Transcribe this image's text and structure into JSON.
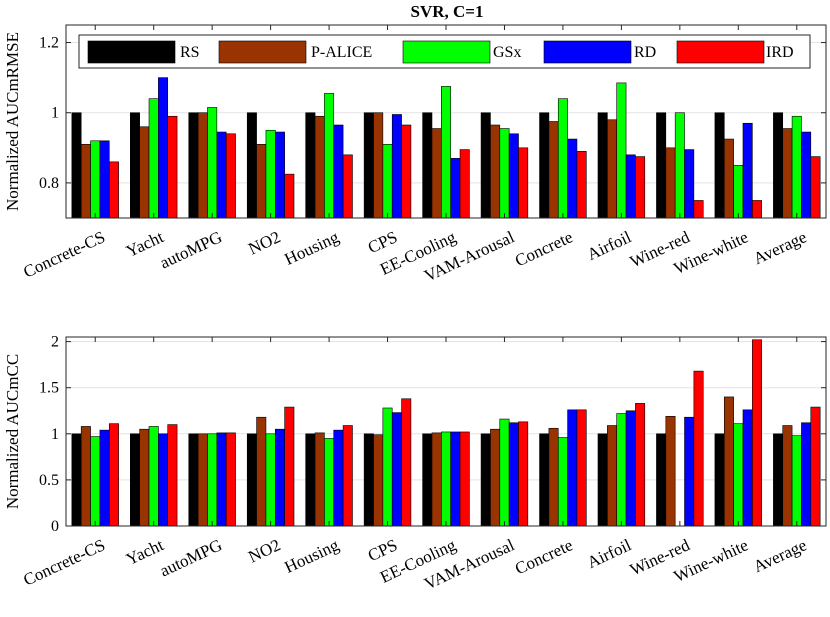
{
  "chart_data": [
    {
      "type": "bar",
      "title": "SVR,  C=1",
      "xlabel": "",
      "ylabel": "Normalized AUCmRMSE",
      "ylim": [
        0.7,
        1.25
      ],
      "yticks": [
        0.8,
        1,
        1.2
      ],
      "ytick_labels": [
        "0.8",
        "1",
        "1.2"
      ],
      "grid": true,
      "legend_position": "top",
      "categories": [
        "Concrete-CS",
        "Yacht",
        "autoMPG",
        "NO2",
        "Housing",
        "CPS",
        "EE-Cooling",
        "VAM-Arousal",
        "Concrete",
        "Airfoil",
        "Wine-red",
        "Wine-white",
        "Average"
      ],
      "series": [
        {
          "name": "RS",
          "color": "#000000",
          "values": [
            1.0,
            1.0,
            1.0,
            1.0,
            1.0,
            1.0,
            1.0,
            1.0,
            1.0,
            1.0,
            1.0,
            1.0,
            1.0
          ]
        },
        {
          "name": "P-ALICE",
          "color": "#993300",
          "values": [
            0.91,
            0.96,
            1.0,
            0.91,
            0.99,
            1.0,
            0.955,
            0.965,
            0.975,
            0.98,
            0.9,
            0.925,
            0.955
          ]
        },
        {
          "name": "GSx",
          "color": "#00ff00",
          "values": [
            0.92,
            1.04,
            1.015,
            0.95,
            1.055,
            0.91,
            1.075,
            0.955,
            1.04,
            1.085,
            1.0,
            0.85,
            0.99
          ]
        },
        {
          "name": "RD",
          "color": "#0000ff",
          "values": [
            0.92,
            1.1,
            0.945,
            0.945,
            0.965,
            0.995,
            0.87,
            0.94,
            0.925,
            0.88,
            0.895,
            0.97,
            0.945
          ]
        },
        {
          "name": "IRD",
          "color": "#ff0000",
          "values": [
            0.86,
            0.99,
            0.94,
            0.825,
            0.88,
            0.965,
            0.895,
            0.9,
            0.89,
            0.875,
            0.75,
            0.75,
            0.875
          ]
        }
      ]
    },
    {
      "type": "bar",
      "title": "",
      "xlabel": "",
      "ylabel": "Normalized AUCmCC",
      "ylim": [
        0,
        2.05
      ],
      "yticks": [
        0,
        0.5,
        1,
        1.5,
        2
      ],
      "ytick_labels": [
        "0",
        "0.5",
        "1",
        "1.5",
        "2"
      ],
      "grid": true,
      "categories": [
        "Concrete-CS",
        "Yacht",
        "autoMPG",
        "NO2",
        "Housing",
        "CPS",
        "EE-Cooling",
        "VAM-Arousal",
        "Concrete",
        "Airfoil",
        "Wine-red",
        "Wine-white",
        "Average"
      ],
      "series": [
        {
          "name": "RS",
          "color": "#000000",
          "values": [
            1.0,
            1.0,
            1.0,
            1.0,
            1.0,
            1.0,
            1.0,
            1.0,
            1.0,
            1.0,
            1.0,
            1.0,
            1.0
          ]
        },
        {
          "name": "P-ALICE",
          "color": "#993300",
          "values": [
            1.08,
            1.05,
            1.0,
            1.18,
            1.01,
            0.99,
            1.01,
            1.05,
            1.06,
            1.09,
            1.19,
            1.4,
            1.09
          ]
        },
        {
          "name": "GSx",
          "color": "#00ff00",
          "values": [
            0.97,
            1.08,
            1.0,
            1.0,
            0.95,
            1.28,
            1.02,
            1.16,
            0.96,
            1.22,
            -0.02,
            1.11,
            0.98
          ]
        },
        {
          "name": "RD",
          "color": "#0000ff",
          "values": [
            1.04,
            1.0,
            1.01,
            1.05,
            1.04,
            1.23,
            1.02,
            1.12,
            1.26,
            1.25,
            1.18,
            1.26,
            1.12
          ]
        },
        {
          "name": "IRD",
          "color": "#ff0000",
          "values": [
            1.11,
            1.1,
            1.01,
            1.29,
            1.09,
            1.38,
            1.02,
            1.13,
            1.26,
            1.33,
            1.68,
            2.02,
            1.29
          ]
        }
      ]
    }
  ]
}
